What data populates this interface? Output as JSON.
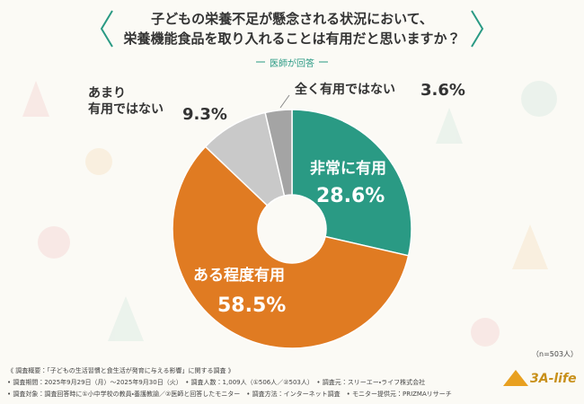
{
  "chart_data": {
    "type": "donut",
    "title_lines": [
      "子どもの栄養不足が懸念される状況において、",
      "栄養機能食品を取り入れることは有用だと思いますか？"
    ],
    "subtitle": "医師が回答",
    "categories": [
      "非常に有用",
      "ある程度有用",
      "あまり\n有用ではない",
      "全く有用ではない"
    ],
    "values": [
      28.6,
      58.5,
      9.3,
      3.6
    ],
    "value_labels": [
      "28.6%",
      "58.5%",
      "9.3%",
      "3.6%"
    ],
    "colors": [
      "#2a9a84",
      "#e07b22",
      "#c9c9c9",
      "#a4a4a4"
    ],
    "sample_note": "（n=503人）"
  },
  "footer": {
    "lines": [
      "《 調査概要：「子どもの生活習慣と食生活が発育に与える影響」に関する調査 》",
      "• 調査期間：2025年9月29日（月）～2025年9月30日（火）　• 調査人数：1,009人（①506人／②503人）　• 調査元：スリーエー・ライフ株式会社",
      "• 調査対象：調査回答時に①小中学校の教員・養護教諭／②医師と回答したモニター　• 調査方法：インターネット調査　• モニター提供元：PRIZMAリサーチ"
    ],
    "logo": "3A-life"
  }
}
